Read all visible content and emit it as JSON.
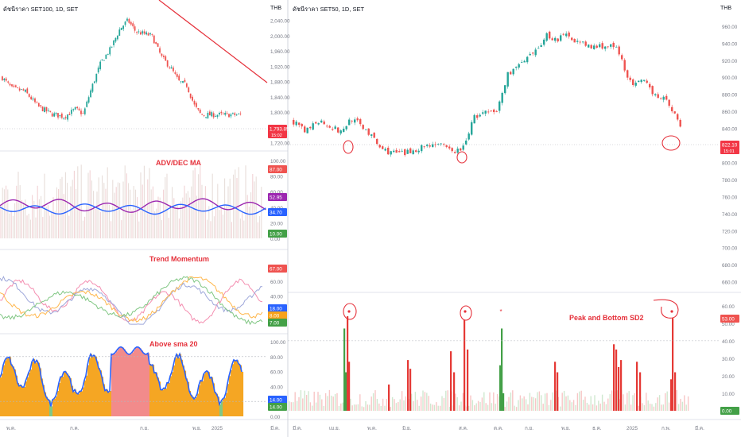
{
  "left_title": "ดัชนีราคา SET100, 1D, SET",
  "right_title": "ดัชนีราคา SET50, 1D, SET",
  "currency": "THB",
  "colors": {
    "up": "#26a69a",
    "down": "#ef5350",
    "trendline": "#e5303a",
    "annot": "#e5303a",
    "grid": "#e0e3eb",
    "axis_text": "#787b86",
    "orange": "#f7a21b",
    "blue": "#2962ff",
    "purple": "#9c27b0",
    "green": "#4caf50",
    "pink": "#f48fb1"
  },
  "chart_data": [
    {
      "name": "SET100",
      "type": "candlestick",
      "y_ticks": [
        "2,040.00",
        "2,000.00",
        "1,960.00",
        "1,920.00",
        "1,880.00",
        "1,840.00",
        "1,800.00",
        "1,720.00"
      ],
      "ylim": [
        1740,
        2060
      ],
      "last_price": "1,793.85",
      "last_time": "15:02",
      "x_ticks": [
        "พ.ค.",
        "ก.ค.",
        "ก.ย.",
        "พ.ย.",
        "2025",
        "มี.ค."
      ],
      "close_path": [
        [
          0,
          1890
        ],
        [
          12,
          1862
        ],
        [
          28,
          1855
        ],
        [
          45,
          1815
        ],
        [
          62,
          1795
        ],
        [
          78,
          1788
        ],
        [
          92,
          1808
        ],
        [
          102,
          1795
        ],
        [
          112,
          1862
        ],
        [
          124,
          1930
        ],
        [
          136,
          1965
        ],
        [
          148,
          2018
        ],
        [
          158,
          2040
        ],
        [
          168,
          2010
        ],
        [
          178,
          2005
        ],
        [
          188,
          2000
        ],
        [
          200,
          1945
        ],
        [
          212,
          1915
        ],
        [
          222,
          1880
        ],
        [
          232,
          1870
        ],
        [
          242,
          1815
        ],
        [
          250,
          1793
        ]
      ],
      "trendline": {
        "label": ""
      }
    },
    {
      "name": "ADV/DEC MA",
      "type": "line",
      "title": "ADV/DEC MA",
      "y_ticks": [
        "100.00",
        "80.00",
        "60.00",
        "40.00",
        "20.00",
        "0.00"
      ],
      "ylim": [
        0,
        100
      ],
      "badges": [
        "87.00",
        "52.95",
        "34.70",
        "10.00"
      ]
    },
    {
      "name": "Trend Momentum",
      "type": "line",
      "title": "Trend Momentum",
      "y_ticks": [
        "80.00",
        "60.00",
        "40.00",
        "20.00"
      ],
      "ylim": [
        0,
        90
      ],
      "badges": [
        "67.00",
        "18.00",
        "8.00",
        "7.00"
      ]
    },
    {
      "name": "Above sma 20",
      "type": "area",
      "title": "Above sma 20",
      "y_ticks": [
        "100.00",
        "80.00",
        "60.00",
        "40.00",
        "20.00",
        "0.00"
      ],
      "ylim": [
        0,
        100
      ],
      "badges": [
        "14.00",
        "14.00"
      ]
    },
    {
      "name": "SET50",
      "type": "candlestick",
      "y_ticks": [
        "960.00",
        "940.00",
        "920.00",
        "900.00",
        "880.00",
        "860.00",
        "840.00",
        "800.00",
        "780.00",
        "760.00",
        "740.00",
        "720.00",
        "700.00",
        "680.00",
        "660.00"
      ],
      "ylim": [
        655,
        972
      ],
      "last_price": "822.10",
      "last_time": "15:01",
      "x_ticks": [
        "มี.ค.",
        "เม.ย.",
        "พ.ค.",
        "มิ.ย.",
        "ส.ค.",
        "ต.ค.",
        "ก.ย.",
        "พ.ย.",
        "ธ.ค.",
        "2025",
        "ก.พ.",
        "มี.ค."
      ],
      "close_path": [
        [
          0,
          848
        ],
        [
          15,
          835
        ],
        [
          30,
          850
        ],
        [
          42,
          845
        ],
        [
          60,
          835
        ],
        [
          72,
          852
        ],
        [
          90,
          840
        ],
        [
          110,
          816
        ],
        [
          122,
          812
        ],
        [
          140,
          810
        ],
        [
          160,
          818
        ],
        [
          180,
          823
        ],
        [
          200,
          812
        ],
        [
          215,
          818
        ],
        [
          225,
          852
        ],
        [
          240,
          858
        ],
        [
          255,
          858
        ],
        [
          270,
          905
        ],
        [
          290,
          918
        ],
        [
          305,
          930
        ],
        [
          318,
          950
        ],
        [
          330,
          944
        ],
        [
          345,
          950
        ],
        [
          360,
          940
        ],
        [
          375,
          935
        ],
        [
          390,
          937
        ],
        [
          405,
          935
        ],
        [
          415,
          915
        ],
        [
          425,
          890
        ],
        [
          440,
          895
        ],
        [
          455,
          880
        ],
        [
          465,
          875
        ],
        [
          475,
          865
        ],
        [
          485,
          845
        ],
        [
          490,
          828
        ]
      ]
    },
    {
      "name": "Peak and Bottom SD2",
      "type": "bar",
      "title": "Peak and Bottom SD2",
      "y_ticks": [
        "60.00",
        "50.00",
        "40.00",
        "30.00",
        "20.00",
        "10.00",
        "0.00"
      ],
      "ylim": [
        0,
        64
      ],
      "badges": [
        "53.00",
        "0.00"
      ]
    }
  ]
}
